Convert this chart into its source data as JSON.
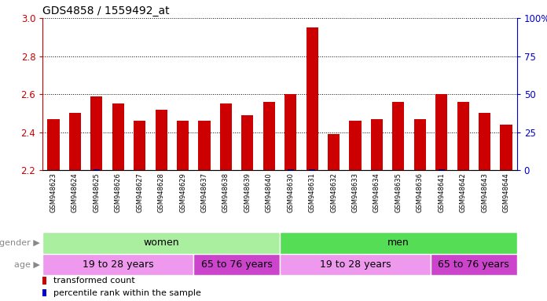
{
  "title": "GDS4858 / 1559492_at",
  "samples": [
    "GSM948623",
    "GSM948624",
    "GSM948625",
    "GSM948626",
    "GSM948627",
    "GSM948628",
    "GSM948629",
    "GSM948637",
    "GSM948638",
    "GSM948639",
    "GSM948640",
    "GSM948630",
    "GSM948631",
    "GSM948632",
    "GSM948633",
    "GSM948634",
    "GSM948635",
    "GSM948636",
    "GSM948641",
    "GSM948642",
    "GSM948643",
    "GSM948644"
  ],
  "transformed_count": [
    2.47,
    2.5,
    2.59,
    2.55,
    2.46,
    2.52,
    2.46,
    2.46,
    2.55,
    2.49,
    2.56,
    2.6,
    2.95,
    2.39,
    2.46,
    2.47,
    2.56,
    2.47,
    2.6,
    2.56,
    2.5,
    2.44
  ],
  "percentile_rank": [
    3,
    5,
    8,
    7,
    4,
    6,
    4,
    4,
    7,
    5,
    7,
    10,
    15,
    3,
    4,
    4,
    7,
    4,
    10,
    7,
    5,
    3
  ],
  "ymin": 2.2,
  "ymax": 3.0,
  "pct_min": 0,
  "pct_max": 100,
  "bar_color": "#cc0000",
  "pct_color": "#0000cc",
  "left_axis_color": "#cc0000",
  "right_axis_color": "#0000cc",
  "bg_color": "#ffffff",
  "tick_bg_color": "#d0d0d0",
  "gender_groups": [
    {
      "label": "women",
      "start": 0,
      "end": 11,
      "color": "#aaeea0"
    },
    {
      "label": "men",
      "start": 11,
      "end": 22,
      "color": "#55dd55"
    }
  ],
  "age_groups": [
    {
      "label": "19 to 28 years",
      "start": 0,
      "end": 7,
      "color": "#ee99ee"
    },
    {
      "label": "65 to 76 years",
      "start": 7,
      "end": 11,
      "color": "#cc44cc"
    },
    {
      "label": "19 to 28 years",
      "start": 11,
      "end": 18,
      "color": "#ee99ee"
    },
    {
      "label": "65 to 76 years",
      "start": 18,
      "end": 22,
      "color": "#cc44cc"
    }
  ],
  "legend": [
    {
      "label": "transformed count",
      "color": "#cc0000"
    },
    {
      "label": "percentile rank within the sample",
      "color": "#0000cc"
    }
  ],
  "yticks": [
    2.2,
    2.4,
    2.6,
    2.8,
    3.0
  ],
  "pct_ticks": [
    0,
    25,
    50,
    75,
    100
  ],
  "pct_labels": [
    "0",
    "25",
    "50",
    "75",
    "100%"
  ]
}
